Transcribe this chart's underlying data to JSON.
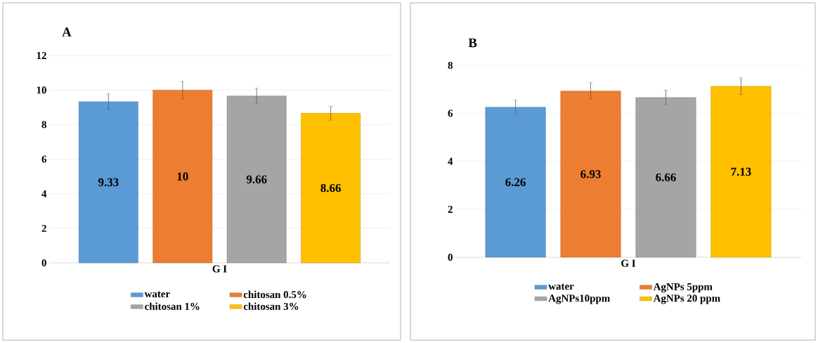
{
  "chart_data": [
    {
      "type": "bar",
      "title": "A",
      "categories": [
        "G I"
      ],
      "ylim": [
        0,
        12
      ],
      "yticks": [
        0,
        2,
        4,
        6,
        8,
        10,
        12
      ],
      "grid": "y",
      "legend": "bottom",
      "data_labels": true,
      "series": [
        {
          "name": "water",
          "color": "#5b9bd5",
          "values": [
            9.33
          ],
          "errors": [
            0.45
          ]
        },
        {
          "name": "chitosan 0.5%",
          "color": "#ed7d31",
          "values": [
            10
          ],
          "errors": [
            0.5
          ]
        },
        {
          "name": "chitosan 1%",
          "color": "#a5a5a5",
          "values": [
            9.66
          ],
          "errors": [
            0.45
          ]
        },
        {
          "name": "chitosan 3%",
          "color": "#ffc000",
          "values": [
            8.66
          ],
          "errors": [
            0.4
          ]
        }
      ]
    },
    {
      "type": "bar",
      "title": "B",
      "categories": [
        "G I"
      ],
      "ylim": [
        0,
        8
      ],
      "yticks": [
        0,
        2,
        4,
        6,
        8
      ],
      "grid": "y",
      "legend": "bottom",
      "data_labels": true,
      "series": [
        {
          "name": "water",
          "color": "#5b9bd5",
          "values": [
            6.26
          ],
          "errors": [
            0.3
          ]
        },
        {
          "name": "AgNPs 5ppm",
          "color": "#ed7d31",
          "values": [
            6.93
          ],
          "errors": [
            0.35
          ]
        },
        {
          "name": "AgNPs10ppm",
          "color": "#a5a5a5",
          "values": [
            6.66
          ],
          "errors": [
            0.3
          ]
        },
        {
          "name": "AgNPs 20 ppm",
          "color": "#ffc000",
          "values": [
            7.13
          ],
          "errors": [
            0.35
          ]
        }
      ]
    }
  ]
}
